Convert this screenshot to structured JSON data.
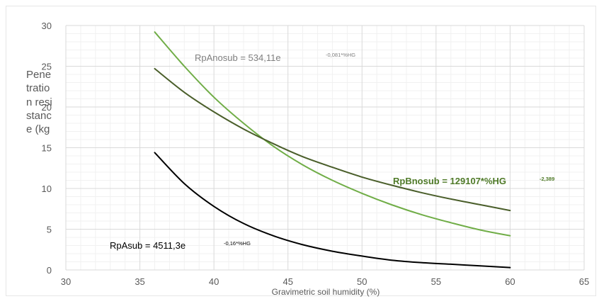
{
  "chart_data": {
    "type": "line",
    "xlabel": "Gravimetric soil humidity (%)",
    "ylabel": "Penetration resistance (kg",
    "xlim": [
      30,
      65
    ],
    "ylim": [
      0,
      30
    ],
    "xticks": [
      30,
      35,
      40,
      45,
      50,
      55,
      60,
      65
    ],
    "yticks": [
      0,
      5,
      10,
      15,
      20,
      25,
      30
    ],
    "grid": true,
    "series": [
      {
        "name": "RpAnosub",
        "color": "#70ad47",
        "x": [
          36,
          38,
          40,
          42,
          44,
          46,
          48,
          50,
          52,
          54,
          56,
          58,
          60
        ],
        "y": [
          29.2,
          25.0,
          21.2,
          18.0,
          15.2,
          12.9,
          11.0,
          9.4,
          8.0,
          6.8,
          5.8,
          4.9,
          4.2
        ]
      },
      {
        "name": "RpBnosub",
        "color": "#4a5e2a",
        "x": [
          36,
          38,
          40,
          42,
          44,
          46,
          48,
          50,
          52,
          54,
          56,
          58,
          60
        ],
        "y": [
          24.7,
          21.8,
          19.4,
          17.3,
          15.5,
          13.9,
          12.6,
          11.4,
          10.4,
          9.5,
          8.7,
          8.0,
          7.3
        ]
      },
      {
        "name": "RpAsub",
        "color": "#000000",
        "x": [
          36,
          38,
          40,
          42,
          44,
          46,
          48,
          50,
          52,
          54,
          56,
          58,
          60
        ],
        "y": [
          14.4,
          10.6,
          7.8,
          5.7,
          4.2,
          3.1,
          2.3,
          1.7,
          1.2,
          0.9,
          0.7,
          0.5,
          0.3
        ]
      }
    ],
    "annotations": [
      {
        "main": "RpAnosub = 534,11e",
        "sup": "-0,081*%HG",
        "color": "#808080",
        "sup_color": "#808080",
        "bold": false
      },
      {
        "main": "RpBnosub = 129107*%HG",
        "sup": "-2,389",
        "color": "#4f7a28",
        "sup_color": "#4f7a28",
        "bold": true
      },
      {
        "main": "RpAsub = 4511,3e",
        "sup": "-0,16*%HG",
        "color": "#000000",
        "sup_color": "#000000",
        "bold": false
      }
    ]
  }
}
